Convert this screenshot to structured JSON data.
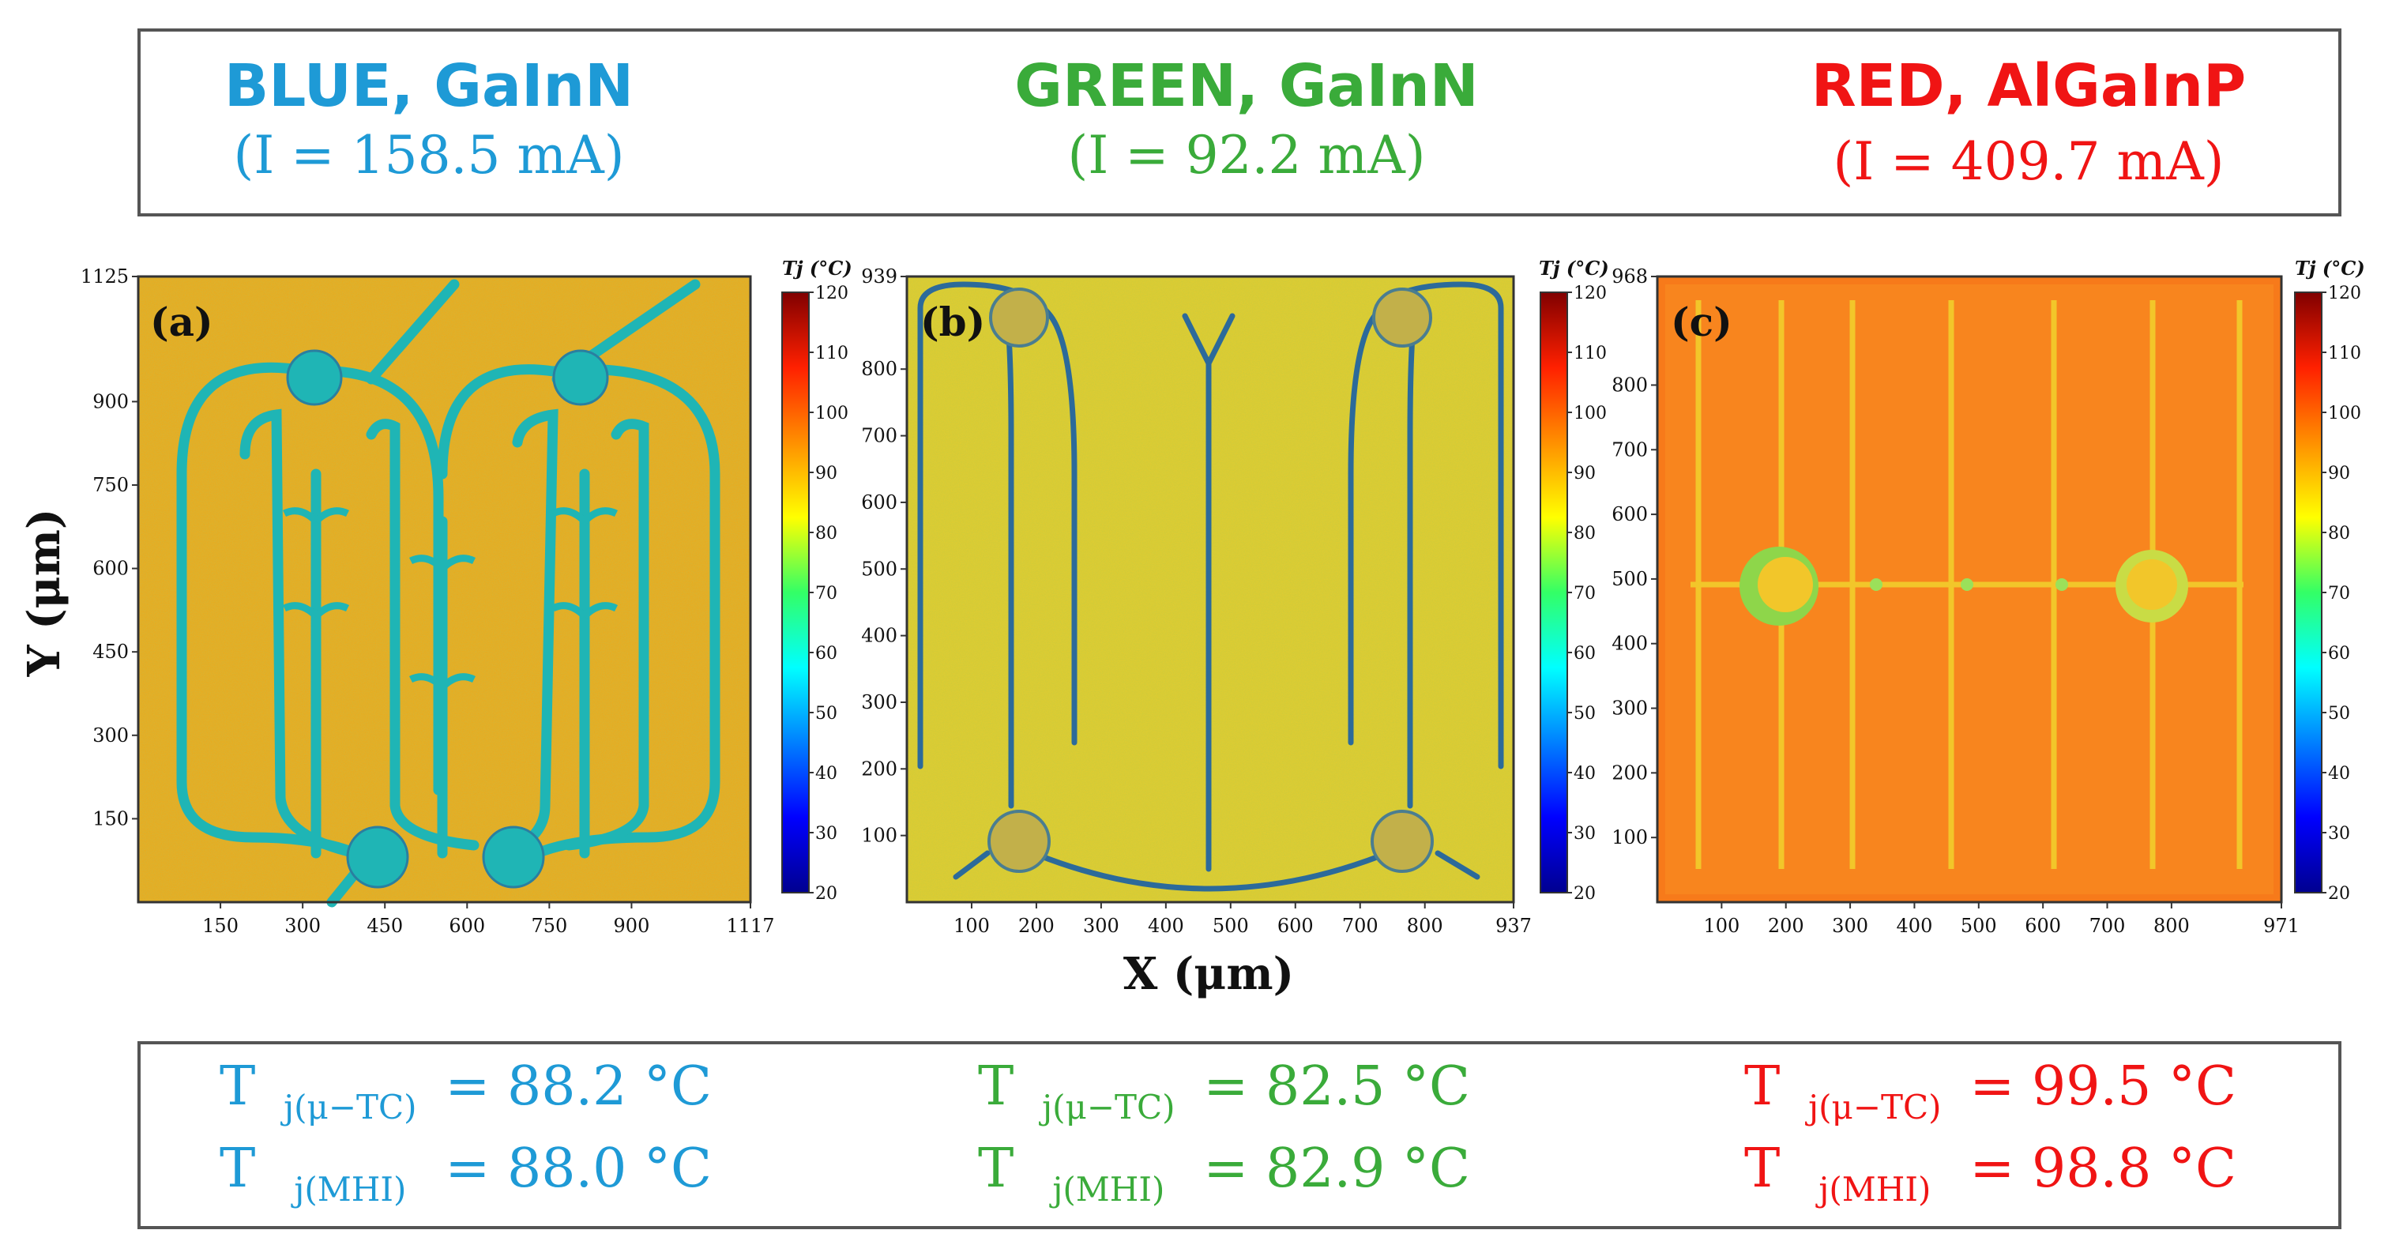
{
  "colors": {
    "blue": "#1e9ad6",
    "green": "#3aab3a",
    "red": "#f01414",
    "frame": "#555555"
  },
  "header": {
    "columns": [
      {
        "name": "BLUE, GaInN",
        "current": "(I = 158.5 mA)",
        "color": "#1e9ad6"
      },
      {
        "name": "GREEN, GaInN",
        "current": "(I = 92.2 mA)",
        "color": "#3aab3a"
      },
      {
        "name": "RED, AlGaInP",
        "current": "(I = 409.7 mA)",
        "color": "#f01414"
      }
    ]
  },
  "footer": {
    "symbol": "T",
    "sub_tc": "j(μ−TC)",
    "sub_mhi": "j(MHI)",
    "columns": [
      {
        "tc": "= 88.2 °C",
        "mhi": "= 88.0 °C",
        "color": "#1e9ad6"
      },
      {
        "tc": "= 82.5 °C",
        "mhi": "= 82.9 °C",
        "color": "#3aab3a"
      },
      {
        "tc": "= 99.5 °C",
        "mhi": "= 98.8 °C",
        "color": "#f01414"
      }
    ]
  },
  "chart_data": [
    {
      "type": "heatmap",
      "panel_label": "(a)",
      "xlabel": "",
      "ylabel": "Y (μm)",
      "xlim": [
        0,
        1117
      ],
      "ylim": [
        0,
        1125
      ],
      "x_ticks": [
        150,
        300,
        450,
        600,
        750,
        900,
        1117
      ],
      "y_ticks": [
        150,
        300,
        450,
        600,
        750,
        900,
        1125
      ],
      "colorbar": {
        "label": "Tj (°C)",
        "min": 20,
        "max": 120,
        "ticks": [
          20,
          30,
          40,
          50,
          60,
          70,
          80,
          90,
          100,
          110,
          120
        ]
      },
      "background_temp": 92,
      "features": "serpentine contact fingers with two bond pads at top and two at bottom, cooler (~60-70 °C) than active area"
    },
    {
      "type": "heatmap",
      "panel_label": "(b)",
      "xlabel": "X (μm)",
      "ylabel": "",
      "xlim": [
        0,
        937
      ],
      "ylim": [
        0,
        939
      ],
      "x_ticks": [
        100,
        200,
        300,
        400,
        500,
        600,
        700,
        800,
        937
      ],
      "y_ticks": [
        100,
        200,
        300,
        400,
        500,
        600,
        700,
        800,
        939
      ],
      "colorbar": {
        "label": "Tj (°C)",
        "min": 20,
        "max": 120,
        "ticks": [
          20,
          30,
          40,
          50,
          60,
          70,
          80,
          90,
          100,
          110,
          120
        ]
      },
      "background_temp": 84,
      "features": "vertical contact fingers, curved bottom bus, four corner bond pads"
    },
    {
      "type": "heatmap",
      "panel_label": "(c)",
      "xlabel": "",
      "ylabel": "",
      "xlim": [
        0,
        971
      ],
      "ylim": [
        0,
        968
      ],
      "x_ticks": [
        100,
        200,
        300,
        400,
        500,
        600,
        700,
        800,
        971
      ],
      "y_ticks": [
        100,
        200,
        300,
        400,
        500,
        600,
        700,
        800,
        968
      ],
      "colorbar": {
        "label": "Tj (°C)",
        "min": 20,
        "max": 120,
        "ticks": [
          20,
          30,
          40,
          50,
          60,
          70,
          80,
          90,
          100,
          110,
          120
        ]
      },
      "background_temp": 99,
      "features": "seven vertical fingers, horizontal bus at Y≈490, two bond pads"
    }
  ]
}
